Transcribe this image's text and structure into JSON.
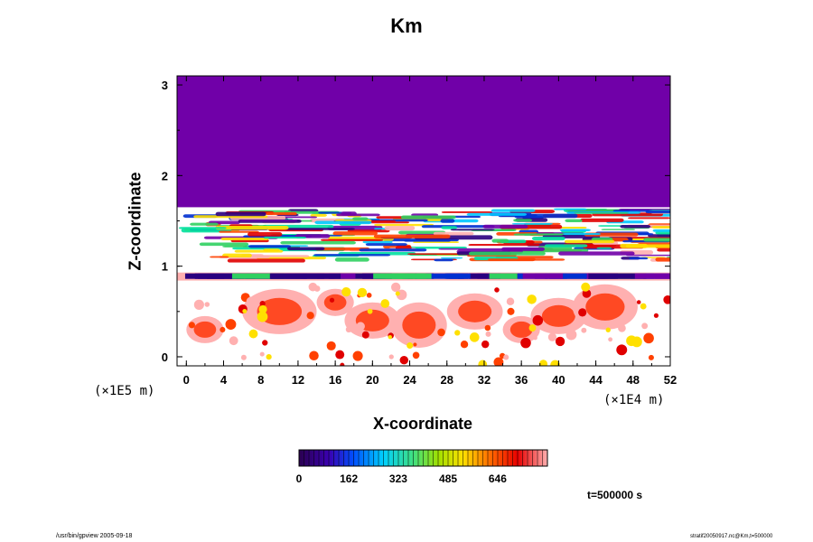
{
  "chart_data": {
    "type": "heatmap",
    "title": "Km",
    "xlabel": "X-coordinate",
    "ylabel": "Z-coordinate",
    "x_scale_note": "(×1E4 m)",
    "z_scale_note": "(×1E5 m)",
    "x_ticks": [
      "0",
      "4",
      "8",
      "12",
      "16",
      "20",
      "24",
      "28",
      "32",
      "36",
      "40",
      "44",
      "48",
      "52"
    ],
    "z_ticks": [
      "0",
      "1",
      "2",
      "3"
    ],
    "xlim": [
      -1,
      52
    ],
    "zlim": [
      -0.1,
      3.1
    ],
    "colorbar": {
      "min": 0,
      "max": 808,
      "tick_labels": [
        "0",
        "162",
        "323",
        "485",
        "646"
      ],
      "colormap": "purple-blue-cyan-green-yellow-red-pink"
    },
    "time": "t=500000 s",
    "regions": [
      {
        "band": "upper layer",
        "z_range": [
          1.65,
          3.1
        ],
        "value": 0
      },
      {
        "band": "turbulent layer",
        "z_range": [
          1.05,
          1.65
        ],
        "value": "mixed 0-808"
      },
      {
        "band": "stable layer",
        "z_range": [
          0.85,
          1.05
        ],
        "value": "mostly 0"
      },
      {
        "band": "lower layer",
        "z_range": [
          -0.1,
          0.85
        ],
        "value": "mostly high, red-pink patches"
      }
    ]
  },
  "footer": {
    "left": "/usr/bin/gpview 2005-09-18",
    "right": "stratif20050917.nc@Km,t=500000"
  }
}
